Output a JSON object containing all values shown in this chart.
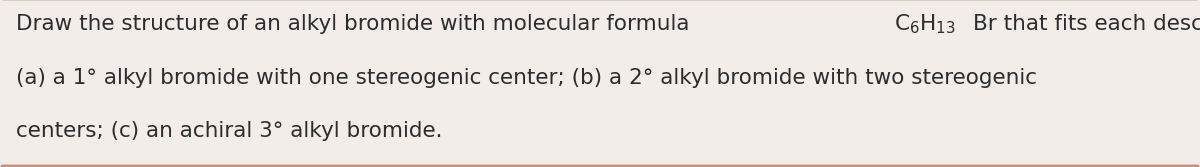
{
  "background_color": "#f2ede9",
  "text_color": "#2d2d2d",
  "border_bottom_color": "#c8907a",
  "border_top_color": "#d0c8c0",
  "font_size": 15.5,
  "line1_before_formula": "Draw the structure of an alkyl bromide with molecular formula ",
  "line1_formula": "$\\mathregular{C_6H_{13}}$",
  "line1_after_formula": "Br that fits each description:",
  "line2": "(a) a 1° alkyl bromide with one stereogenic center; (b) a 2° alkyl bromide with two stereogenic",
  "line3": "centers; (c) an achiral 3° alkyl bromide.",
  "figsize": [
    12.0,
    1.67
  ],
  "dpi": 100
}
